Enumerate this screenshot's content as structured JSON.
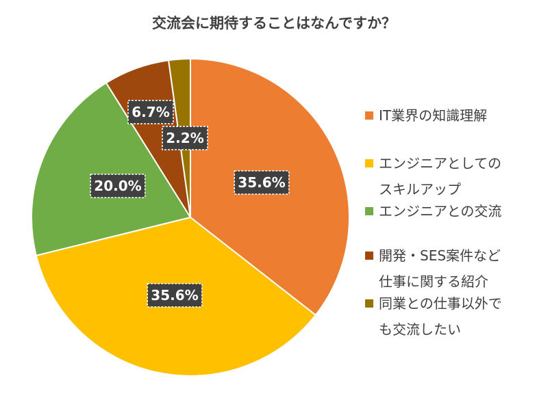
{
  "chart_data": {
    "type": "pie",
    "title": "交流会に期待することはなんですか？",
    "categories": [
      "IT業界の知識理解",
      "エンジニアとしてのスキルアップ",
      "エンジニアとの交流",
      "開発・SES案件など仕事に関する紹介",
      "同業との仕事以外でも交流したい"
    ],
    "legend_lines": [
      [
        "IT業界の知識理解"
      ],
      [
        "エンジニアとしての",
        "スキルアップ"
      ],
      [
        "エンジニアとの交流"
      ],
      [
        "開発・SES案件など",
        "仕事に関する紹介"
      ],
      [
        "同業との仕事以外で",
        "も交流したい"
      ]
    ],
    "values": [
      35.6,
      35.6,
      20.0,
      6.7,
      2.2
    ],
    "data_labels": [
      "35.6%",
      "35.6%",
      "20.0%",
      "6.7%",
      "2.2%"
    ],
    "colors": [
      "#ED7D31",
      "#FFC000",
      "#70AD47",
      "#9E480E",
      "#997300"
    ],
    "start_angle": "12 o'clock",
    "direction": "clockwise",
    "legend_position": "right"
  }
}
